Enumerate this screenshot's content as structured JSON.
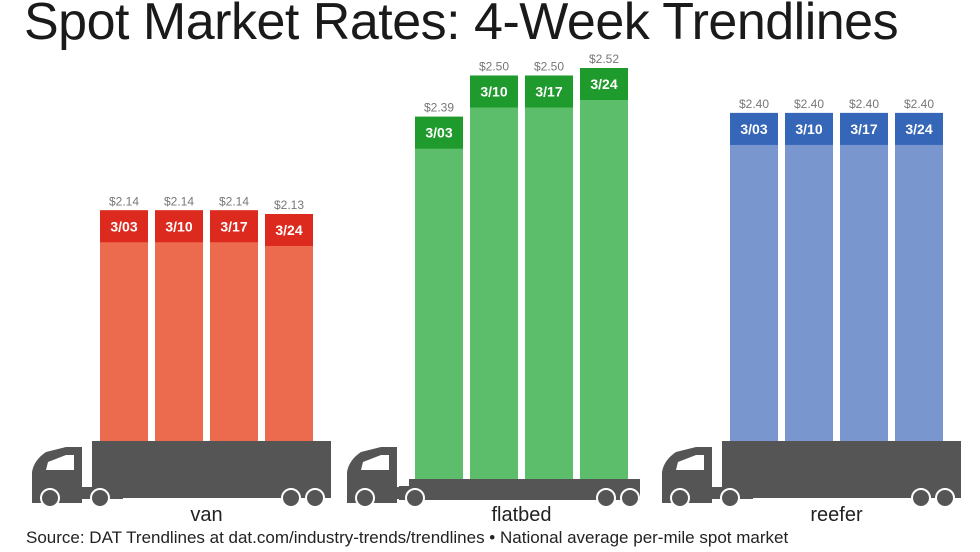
{
  "title": "Spot Market Rates: 4-Week Trendlines",
  "source": "Source: DAT Trendlines at dat.com/industry-trends/trendlines • National average per-mile spot market",
  "chart_data": {
    "type": "bar",
    "title": "Spot Market Rates: 4-Week Trendlines",
    "unit": "$ per mile",
    "legend": "none",
    "grid": false,
    "groups": [
      {
        "name": "van",
        "bar_color": "#ec6b4e",
        "label_color": "#dd2a1f",
        "bars": [
          {
            "week": "3/03",
            "value": 2.14,
            "value_label": "$2.14"
          },
          {
            "week": "3/10",
            "value": 2.14,
            "value_label": "$2.14"
          },
          {
            "week": "3/17",
            "value": 2.14,
            "value_label": "$2.14"
          },
          {
            "week": "3/24",
            "value": 2.13,
            "value_label": "$2.13"
          }
        ]
      },
      {
        "name": "flatbed",
        "bar_color": "#5cbd6a",
        "label_color": "#1f9a2c",
        "bars": [
          {
            "week": "3/03",
            "value": 2.39,
            "value_label": "$2.39"
          },
          {
            "week": "3/10",
            "value": 2.5,
            "value_label": "$2.50"
          },
          {
            "week": "3/17",
            "value": 2.5,
            "value_label": "$2.50"
          },
          {
            "week": "3/24",
            "value": 2.52,
            "value_label": "$2.52"
          }
        ]
      },
      {
        "name": "reefer",
        "bar_color": "#7a96cf",
        "label_color": "#3566b8",
        "bars": [
          {
            "week": "3/03",
            "value": 2.4,
            "value_label": "$2.40"
          },
          {
            "week": "3/10",
            "value": 2.4,
            "value_label": "$2.40"
          },
          {
            "week": "3/17",
            "value": 2.4,
            "value_label": "$2.40"
          },
          {
            "week": "3/24",
            "value": 2.4,
            "value_label": "$2.40"
          }
        ]
      }
    ],
    "truck_color": "#555555"
  }
}
